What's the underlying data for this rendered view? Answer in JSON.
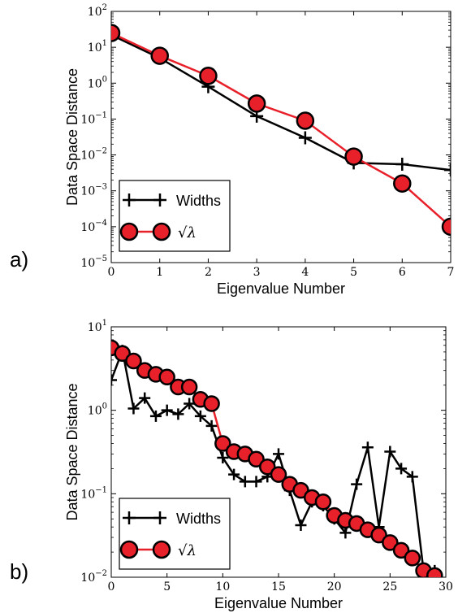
{
  "chart_data": [
    {
      "type": "line",
      "panel_label": "a)",
      "xlabel": "Eigenvalue Number",
      "ylabel": "Data Space Distance",
      "xlim": [
        0,
        7
      ],
      "ylim": [
        1e-05,
        100
      ],
      "yscale": "log",
      "xticks": [
        "0",
        "1",
        "2",
        "3",
        "4",
        "5",
        "6",
        "7"
      ],
      "yticks": [
        {
          "base": "10",
          "exp": "2"
        },
        {
          "base": "10",
          "exp": "1"
        },
        {
          "base": "10",
          "exp": "0"
        },
        {
          "base": "10",
          "exp": "−1"
        },
        {
          "base": "10",
          "exp": "−2"
        },
        {
          "base": "10",
          "exp": "−3"
        },
        {
          "base": "10",
          "exp": "−4"
        },
        {
          "base": "10",
          "exp": "−5"
        }
      ],
      "legend_position": "bottom-left",
      "series": [
        {
          "name": "Widths",
          "marker": "plus",
          "color": "#000000",
          "x": [
            0,
            1,
            2,
            3,
            4,
            5,
            6,
            7
          ],
          "values": [
            22,
            5,
            0.8,
            0.12,
            0.03,
            0.006,
            0.0055,
            0.0038
          ]
        },
        {
          "name": "√λ",
          "marker": "circle",
          "color": "#e8202a",
          "x": [
            0,
            1,
            2,
            3,
            4,
            5,
            6,
            7
          ],
          "values": [
            25,
            5.8,
            1.6,
            0.27,
            0.09,
            0.009,
            0.0016,
            0.0001
          ]
        }
      ]
    },
    {
      "type": "line",
      "panel_label": "b)",
      "xlabel": "Eigenvalue Number",
      "ylabel": "Data Space Distance",
      "xlim": [
        0,
        30
      ],
      "ylim": [
        0.01,
        10
      ],
      "yscale": "log",
      "xticks": [
        "0",
        "5",
        "10",
        "15",
        "20",
        "25",
        "30"
      ],
      "yticks": [
        {
          "base": "10",
          "exp": "1"
        },
        {
          "base": "10",
          "exp": "0"
        },
        {
          "base": "10",
          "exp": "−1"
        },
        {
          "base": "10",
          "exp": "−2"
        }
      ],
      "legend_position": "bottom-left",
      "series": [
        {
          "name": "Widths",
          "marker": "plus",
          "color": "#000000",
          "x": [
            0,
            1,
            2,
            3,
            4,
            5,
            6,
            7,
            8,
            9,
            10,
            11,
            12,
            13,
            14,
            15,
            16,
            17,
            18,
            19,
            20,
            21,
            22,
            23,
            24,
            25,
            26,
            27,
            28,
            29
          ],
          "values": [
            2.3,
            5.2,
            1.05,
            1.4,
            0.85,
            1.0,
            0.9,
            1.2,
            0.85,
            0.65,
            0.27,
            0.17,
            0.14,
            0.14,
            0.16,
            0.3,
            0.11,
            0.042,
            0.08,
            0.072,
            0.05,
            0.034,
            0.13,
            0.36,
            0.04,
            0.32,
            0.2,
            0.16,
            0.012,
            0.012
          ]
        },
        {
          "name": "√λ",
          "marker": "circle",
          "color": "#e8202a",
          "x": [
            0,
            1,
            2,
            3,
            4,
            5,
            6,
            7,
            8,
            9,
            10,
            11,
            12,
            13,
            14,
            15,
            16,
            17,
            18,
            19,
            20,
            21,
            22,
            23,
            24,
            25,
            26,
            27,
            28,
            29
          ],
          "values": [
            5.6,
            4.8,
            3.9,
            3.0,
            2.7,
            2.5,
            1.9,
            1.9,
            1.35,
            1.2,
            0.4,
            0.32,
            0.3,
            0.26,
            0.21,
            0.17,
            0.13,
            0.11,
            0.09,
            0.08,
            0.055,
            0.048,
            0.044,
            0.037,
            0.032,
            0.026,
            0.021,
            0.017,
            0.012,
            0.0105
          ]
        }
      ]
    }
  ]
}
